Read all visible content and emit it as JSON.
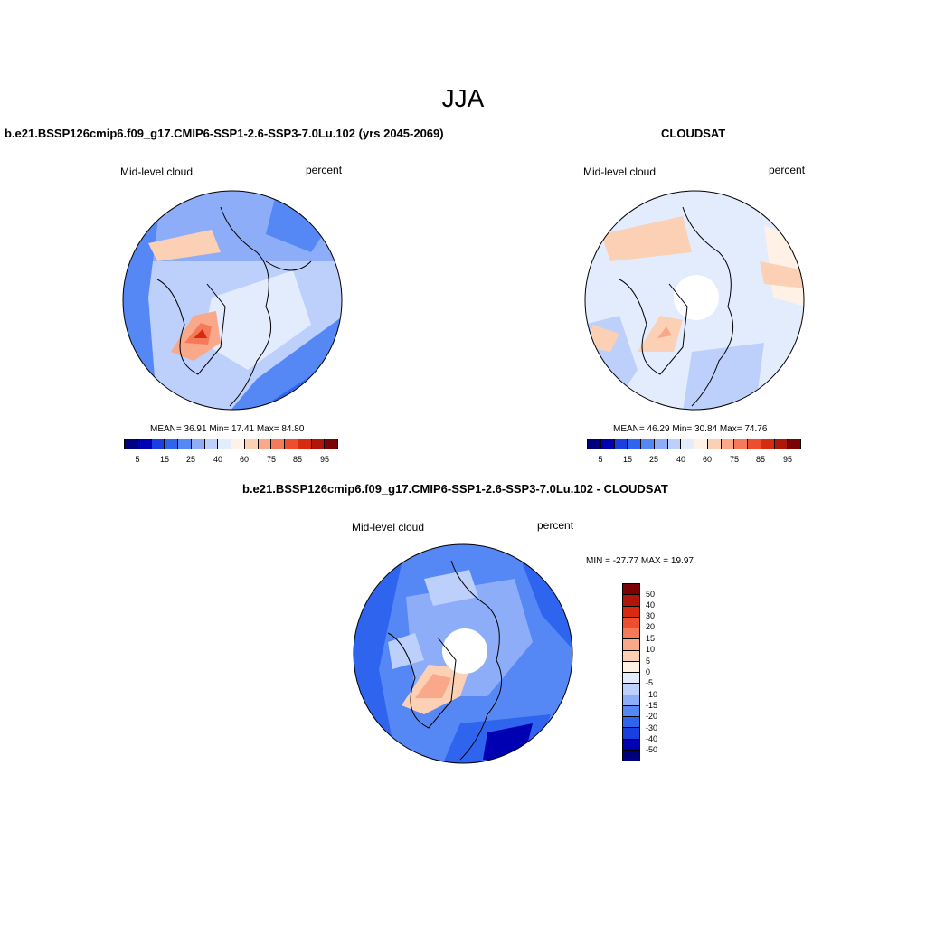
{
  "title": "JJA",
  "colors": {
    "abs_scale": [
      "#00007f",
      "#0000b3",
      "#1a3fe0",
      "#2f64ee",
      "#5587f5",
      "#8eadf8",
      "#bcd0fb",
      "#e3ecfd",
      "#fff1e6",
      "#fcd0b4",
      "#f9a88a",
      "#f57a5a",
      "#ec4e2e",
      "#d72a10",
      "#b0160a",
      "#7a0403"
    ],
    "diff_scale": [
      "#00007f",
      "#0000b3",
      "#1a3fe0",
      "#2f64ee",
      "#5587f5",
      "#8eadf8",
      "#bcd0fb",
      "#e3ecfd",
      "#fff1e6",
      "#fcd0b4",
      "#f9a88a",
      "#f57a5a",
      "#ec4e2e",
      "#d72a10",
      "#b0160a",
      "#7a0403"
    ]
  },
  "panels": [
    {
      "title": "b.e21.BSSP126cmip6.f09_g17.CMIP6-SSP1-2.6-SSP3-7.0Lu.102 (yrs 2045-2069)",
      "left_label": "Mid-level cloud",
      "right_label": "percent",
      "stats": "MEAN=  36.91  Min=  17.41  Max=  84.80",
      "tick_labels": [
        "5",
        "15",
        "25",
        "40",
        "60",
        "75",
        "85",
        "95"
      ]
    },
    {
      "title": "CLOUDSAT",
      "left_label": "Mid-level cloud",
      "right_label": "percent",
      "stats": "MEAN=  46.29  Min=  30.84  Max=  74.76",
      "tick_labels": [
        "5",
        "15",
        "25",
        "40",
        "60",
        "75",
        "85",
        "95"
      ]
    },
    {
      "title": "b.e21.BSSP126cmip6.f09_g17.CMIP6-SSP1-2.6-SSP3-7.0Lu.102 - CLOUDSAT",
      "left_label": "Mid-level cloud",
      "right_label": "percent",
      "stats": "MIN = -27.77 MAX =  19.97",
      "tick_labels": [
        "50",
        "40",
        "30",
        "20",
        "15",
        "10",
        "5",
        "0",
        "-5",
        "-10",
        "-15",
        "-20",
        "-30",
        "-40",
        "-50"
      ]
    }
  ]
}
